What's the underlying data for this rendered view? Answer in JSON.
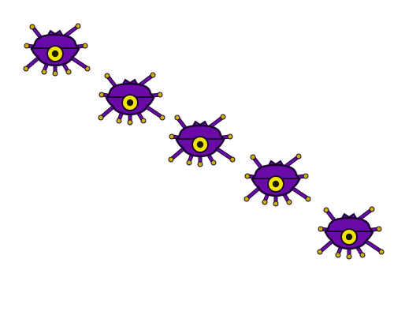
{
  "scene": {
    "background": "#ffffff",
    "sprite": {
      "name": "purple-bug-enemy-sprite",
      "body_color": "#6a0aa8",
      "outline_color": "#1a0030",
      "eye_color": "#f2e600",
      "pupil_color": "#1a1a00",
      "leg_tip_color": "#c9b200"
    },
    "enemy_count": 5
  }
}
